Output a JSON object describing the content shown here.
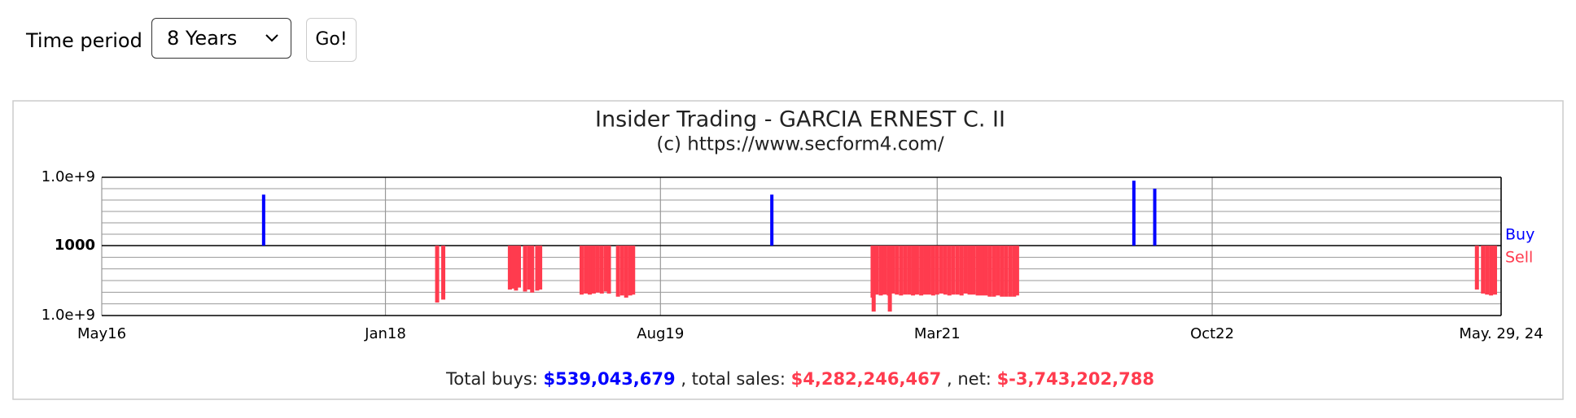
{
  "controls": {
    "label": "Time period",
    "select": "8 Years",
    "button": "Go!"
  },
  "chart_data": {
    "type": "bar",
    "title": "Insider Trading - GARCIA ERNEST C. II",
    "subtitle": "(c) https://www.secform4.com/",
    "xlim": [
      2016.37,
      2024.41
    ],
    "xticks": [
      {
        "value": 2016.37,
        "label": "May16"
      },
      {
        "value": 2018.0,
        "label": "Jan18"
      },
      {
        "value": 2019.58,
        "label": "Aug19"
      },
      {
        "value": 2021.17,
        "label": "Mar21"
      },
      {
        "value": 2022.75,
        "label": "Oct22"
      },
      {
        "value": 2024.41,
        "label": "May. 29, 24"
      }
    ],
    "yscale": "log",
    "ylim": [
      -1000000000,
      1000000000
    ],
    "yticks": [
      {
        "value": 1000000000,
        "label": "1.0e+9"
      },
      1000,
      {
        "value": -1000000000,
        "label": "1.0e+9"
      }
    ],
    "minor_yticks": [
      10000,
      100000,
      1000000,
      10000000,
      100000000,
      -10000,
      -100000,
      -1000000,
      -10000000,
      -100000000
    ],
    "grid": true,
    "series": [
      {
        "name": "Buy",
        "color": "#0000ff",
        "x": [
          2017.3,
          2020.22,
          2022.3,
          2022.42
        ],
        "values": [
          30000000,
          30000000,
          500000000,
          100000000
        ]
      },
      {
        "name": "Sell",
        "color": "#ff3b4e",
        "x": [
          2018.297,
          2018.332,
          2018.715,
          2018.733,
          2018.75,
          2018.767,
          2018.802,
          2018.826,
          2018.843,
          2018.872,
          2018.889,
          2019.127,
          2019.151,
          2019.174,
          2019.197,
          2019.22,
          2019.243,
          2019.267,
          2019.284,
          2019.336,
          2019.36,
          2019.383,
          2019.406,
          2019.423,
          2020.799,
          2020.805,
          2020.822,
          2020.846,
          2020.869,
          2020.892,
          2020.898,
          2020.915,
          2020.938,
          2020.962,
          2020.985,
          2021.008,
          2021.031,
          2021.054,
          2021.078,
          2021.101,
          2021.124,
          2021.147,
          2021.17,
          2021.194,
          2021.217,
          2021.24,
          2021.263,
          2021.287,
          2021.31,
          2021.333,
          2021.356,
          2021.379,
          2021.403,
          2021.426,
          2021.449,
          2021.472,
          2021.496,
          2021.519,
          2021.542,
          2021.565,
          2021.589,
          2021.612,
          2021.629,
          2024.271,
          2024.306,
          2024.329,
          2024.352,
          2024.375
        ],
        "values": [
          -77000000,
          -43000000,
          -5900000,
          -4900000,
          -7200000,
          -4000000,
          -8700000,
          -5900000,
          -10700000,
          -7200000,
          -5900000,
          -16000000,
          -13000000,
          -16000000,
          -13000000,
          -10700000,
          -13000000,
          -8700000,
          -13000000,
          -24000000,
          -19000000,
          -29000000,
          -19000000,
          -16000000,
          -29000000,
          -460000000,
          -16000000,
          -19000000,
          -16000000,
          -19000000,
          -460000000,
          -13000000,
          -16000000,
          -19000000,
          -16000000,
          -16000000,
          -19000000,
          -16000000,
          -19000000,
          -16000000,
          -16000000,
          -19000000,
          -16000000,
          -13000000,
          -16000000,
          -19000000,
          -16000000,
          -16000000,
          -19000000,
          -13000000,
          -16000000,
          -16000000,
          -19000000,
          -19000000,
          -19000000,
          -24000000,
          -24000000,
          -19000000,
          -24000000,
          -24000000,
          -24000000,
          -24000000,
          -19000000,
          -5900000,
          -13000000,
          -16000000,
          -19000000,
          -16000000
        ]
      }
    ],
    "footer": {
      "buys_label": "Total buys:",
      "buys": "$539,043,679",
      "sales_label": ", total sales:",
      "sales": "$4,282,246,467",
      "net_label": ", net:",
      "net": "$-3,743,202,788"
    }
  }
}
